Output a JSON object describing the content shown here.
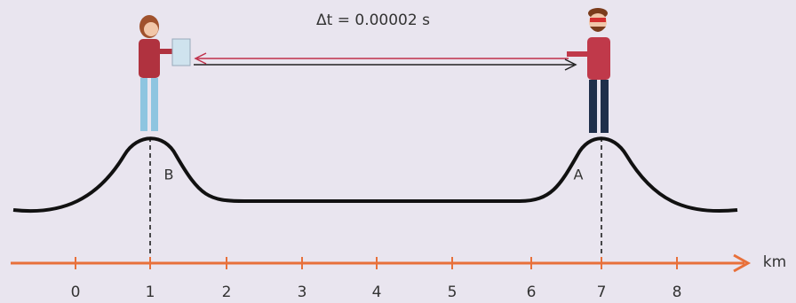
{
  "measurement": "Δt = 0.00002 s",
  "points": [
    {
      "label": "B"
    },
    {
      "label": "A"
    }
  ],
  "axis": {
    "unit": "km",
    "ticks": [
      0,
      1,
      2,
      3,
      4,
      5,
      6,
      7,
      8
    ]
  }
}
